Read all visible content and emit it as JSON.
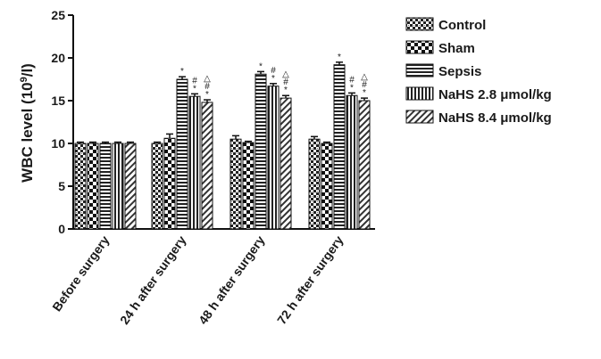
{
  "chart_data": {
    "type": "bar",
    "ylabel": "WBC level (10",
    "ylabel_sup": "9",
    "ylabel_tail": "/l)",
    "ylim": [
      0,
      25
    ],
    "yticks": [
      "0",
      "5",
      "10",
      "15",
      "20",
      "25"
    ],
    "categories": [
      "Before surgery",
      "24 h after surgery",
      "48 h after surgery",
      "72 h after surgery"
    ],
    "series": [
      {
        "name": "Control",
        "pattern": "brick",
        "values": [
          10.0,
          10.0,
          10.5,
          10.5
        ],
        "errors": [
          0.15,
          0.15,
          0.4,
          0.3
        ]
      },
      {
        "name": "Sham",
        "pattern": "check",
        "values": [
          10.0,
          10.6,
          10.1,
          10.0
        ],
        "errors": [
          0.15,
          0.5,
          0.15,
          0.15
        ]
      },
      {
        "name": "Sepsis",
        "pattern": "hlines",
        "values": [
          10.0,
          17.5,
          18.1,
          19.2
        ],
        "errors": [
          0.15,
          0.3,
          0.3,
          0.3
        ]
      },
      {
        "name": "NaHS  2.8 μmol/kg",
        "pattern": "vlines",
        "values": [
          10.0,
          15.5,
          16.7,
          15.6
        ],
        "errors": [
          0.15,
          0.3,
          0.3,
          0.3
        ]
      },
      {
        "name": "NaHS  8.4 μmol/kg",
        "pattern": "diag",
        "values": [
          10.0,
          14.8,
          15.3,
          15.0
        ],
        "errors": [
          0.15,
          0.3,
          0.3,
          0.3
        ]
      }
    ],
    "annotations": [
      {
        "category": 1,
        "series": 2,
        "lines": [
          "*"
        ]
      },
      {
        "category": 1,
        "series": 3,
        "lines": [
          "#",
          "*"
        ]
      },
      {
        "category": 1,
        "series": 4,
        "lines": [
          "△",
          "#",
          "*"
        ]
      },
      {
        "category": 2,
        "series": 2,
        "lines": [
          "*"
        ]
      },
      {
        "category": 2,
        "series": 3,
        "lines": [
          "#",
          "*"
        ]
      },
      {
        "category": 2,
        "series": 4,
        "lines": [
          "△",
          "#",
          "*"
        ]
      },
      {
        "category": 3,
        "series": 2,
        "lines": [
          "*"
        ]
      },
      {
        "category": 3,
        "series": 3,
        "lines": [
          "#",
          "*"
        ]
      },
      {
        "category": 3,
        "series": 4,
        "lines": [
          "△",
          "#",
          "*"
        ]
      }
    ],
    "legend_position": "right",
    "grid": false
  }
}
